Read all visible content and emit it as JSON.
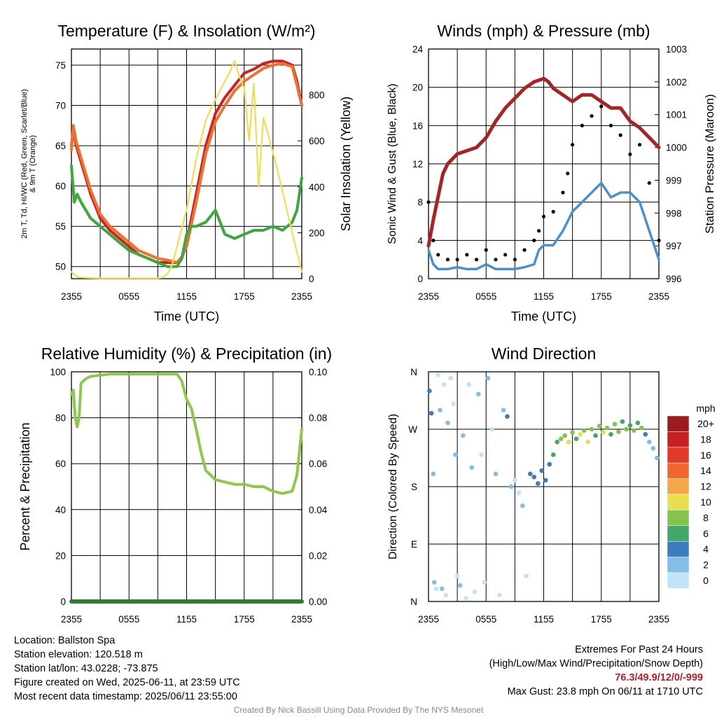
{
  "chart_data": [
    {
      "type": "line",
      "title": "Temperature (F) & Insolation (W/m²)",
      "xlabel": "Time (UTC)",
      "ylabel_left_lines": [
        "2m T, Td, HI/WC (Red, Green, Scarlet/Blue)",
        "& 9m T (Orange)"
      ],
      "ylabel_right": "Solar Insolation (Yellow)",
      "x_ticks": [
        "2355",
        "0555",
        "1155",
        "1755",
        "2355"
      ],
      "ylim_left": [
        48.5,
        77
      ],
      "y_ticks_left": [
        50,
        55,
        60,
        65,
        70,
        75
      ],
      "ylim_right": [
        0,
        1000
      ],
      "y_ticks_right": [
        0,
        200,
        400,
        600,
        800
      ],
      "grid": true,
      "series": [
        {
          "color": "#cc2222",
          "axis": "left",
          "x": [
            0,
            0.2,
            0.5,
            1,
            1.5,
            2,
            2.5,
            3,
            4,
            5,
            6,
            7,
            8,
            9,
            10,
            11,
            11.5,
            12,
            13,
            14,
            15,
            16,
            17,
            18,
            19,
            20,
            21,
            22,
            23,
            23.5,
            24
          ],
          "y": [
            65,
            67,
            65,
            63,
            61,
            59,
            57.5,
            56,
            54.5,
            53.5,
            52.5,
            51.5,
            51,
            50.5,
            50.5,
            50.5,
            51,
            53,
            59,
            65,
            69,
            71,
            72.5,
            74,
            74.5,
            75.2,
            75.5,
            75.5,
            75,
            73,
            70
          ]
        },
        {
          "color": "#f07030",
          "axis": "left",
          "x": [
            0,
            0.2,
            0.5,
            1,
            1.5,
            2,
            2.5,
            3,
            4,
            5,
            6,
            7,
            8,
            9,
            10,
            11,
            11.5,
            12,
            13,
            14,
            15,
            16,
            17,
            18,
            19,
            20,
            21,
            22,
            23,
            23.5,
            24
          ],
          "y": [
            64.5,
            67.5,
            65.5,
            63.5,
            61.5,
            59.5,
            58,
            56.5,
            55,
            54,
            53,
            52,
            51.5,
            51,
            50.8,
            50.5,
            51.2,
            52.5,
            58,
            64,
            68,
            70,
            71.8,
            73,
            73.8,
            74.6,
            75,
            75.2,
            74.8,
            72.5,
            70
          ]
        },
        {
          "color": "#3aa83a",
          "axis": "left",
          "x": [
            0,
            0.3,
            0.6,
            1,
            1.5,
            2,
            3,
            4,
            5,
            6,
            7,
            8,
            9,
            10,
            11,
            11.5,
            12,
            12.5,
            13,
            14,
            15,
            16,
            17,
            18,
            19,
            20,
            21,
            22,
            23,
            23.5,
            24
          ],
          "y": [
            62.5,
            58,
            59,
            58,
            57,
            56,
            55,
            54,
            53,
            52,
            51.5,
            51,
            50.5,
            50,
            50,
            51,
            54,
            55,
            55,
            55.5,
            57,
            54,
            53.5,
            54,
            54.5,
            54.5,
            55,
            54.5,
            55.5,
            57,
            61
          ]
        },
        {
          "color": "#f0de50",
          "axis": "right",
          "x": [
            0,
            0.5,
            1,
            2,
            3,
            4,
            5,
            6,
            7,
            8,
            9,
            9.5,
            10,
            10.5,
            11,
            12,
            13,
            14,
            15,
            16,
            16.5,
            17,
            17.5,
            18,
            18.5,
            19,
            19.5,
            20,
            21,
            22,
            23,
            24
          ],
          "y": [
            30,
            10,
            5,
            3,
            2,
            2,
            2,
            2,
            2,
            2,
            2,
            5,
            20,
            60,
            140,
            300,
            520,
            690,
            780,
            860,
            900,
            950,
            880,
            830,
            600,
            850,
            400,
            700,
            550,
            380,
            200,
            30
          ]
        }
      ]
    },
    {
      "type": "line",
      "title": "Winds (mph) & Pressure (mb)",
      "xlabel": "Time (UTC)",
      "ylabel_left": "Sonic Wind & Gust (Blue, Black)",
      "ylabel_right": "Station Pressure (Maroon)",
      "x_ticks": [
        "2355",
        "0555",
        "1155",
        "1755",
        "2355"
      ],
      "ylim_left": [
        0,
        24
      ],
      "y_ticks_left": [
        0,
        4,
        8,
        12,
        16,
        20,
        24
      ],
      "ylim_right": [
        996,
        1003
      ],
      "y_ticks_right": [
        996,
        997,
        998,
        999,
        1000,
        1001,
        1002,
        1003
      ],
      "grid": true,
      "series": [
        {
          "color": "#a82424",
          "axis": "right",
          "x": [
            0,
            0.5,
            1,
            1.5,
            2,
            3,
            4,
            5,
            6,
            7,
            8,
            9,
            10,
            11,
            12,
            12.5,
            13,
            14,
            15,
            16,
            17,
            18,
            19,
            20,
            21,
            22,
            23,
            24
          ],
          "y": [
            997,
            997.8,
            998.5,
            999.2,
            999.5,
            999.8,
            999.9,
            1000,
            1000.3,
            1000.8,
            1001.2,
            1001.5,
            1001.8,
            1002,
            1002.1,
            1002,
            1001.8,
            1001.6,
            1001.4,
            1001.6,
            1001.6,
            1001.4,
            1001.2,
            1001.2,
            1000.8,
            1000.6,
            1000.3,
            1000
          ]
        },
        {
          "color": "#4a90d0",
          "axis": "left",
          "x": [
            0,
            0.5,
            1,
            2,
            3,
            4,
            5,
            6,
            7,
            8,
            9,
            10,
            11,
            11.5,
            12,
            13,
            14,
            14.5,
            15,
            16,
            17,
            18,
            19,
            20,
            21,
            22,
            23,
            24
          ],
          "y": [
            3,
            1.5,
            1,
            1,
            1.2,
            1,
            1,
            1.5,
            1,
            1,
            1,
            1.2,
            1.5,
            3,
            3.5,
            3.5,
            5,
            6,
            7,
            8,
            9,
            10,
            8.5,
            9,
            9,
            8,
            5,
            2
          ]
        },
        {
          "color": "#000000",
          "axis": "left",
          "x": [
            0,
            0.5,
            1,
            2,
            3,
            4,
            5,
            6,
            7,
            8,
            9,
            10,
            11,
            11.5,
            12,
            13,
            14,
            14.5,
            15,
            16,
            17,
            18,
            19,
            20,
            21,
            22,
            23,
            24
          ],
          "y": [
            8,
            4,
            2.5,
            2,
            2,
            2.5,
            2,
            3,
            2,
            2.5,
            2,
            3,
            4,
            5,
            6.5,
            7,
            9,
            11,
            14,
            16,
            17,
            18,
            16,
            15,
            13,
            14,
            10,
            4
          ]
        }
      ]
    },
    {
      "type": "line",
      "title": "Relative Humidity (%) & Precipitation (in)",
      "ylabel_left": "Percent & Precipitation",
      "x_ticks": [
        "2355",
        "0555",
        "1155",
        "1755",
        "2355"
      ],
      "ylim_left": [
        0,
        100
      ],
      "y_ticks_left": [
        0,
        20,
        40,
        60,
        80,
        100
      ],
      "ylim_right": [
        0,
        0.1
      ],
      "y_ticks_right": [
        "0.00",
        "0.02",
        "0.04",
        "0.06",
        "0.08",
        "0.10"
      ],
      "grid": true,
      "series": [
        {
          "color": "#8cc84a",
          "axis": "left",
          "x": [
            0,
            0.2,
            0.4,
            0.6,
            0.8,
            1,
            1.5,
            2,
            3,
            4,
            5,
            6,
            7,
            8,
            9,
            10,
            11,
            11.5,
            12,
            12.5,
            13,
            13.5,
            14,
            14.5,
            15,
            16,
            17,
            18,
            19,
            20,
            21,
            22,
            23,
            23.5,
            24
          ],
          "y": [
            90,
            92,
            80,
            76,
            80,
            95,
            97,
            98,
            98.5,
            99,
            99,
            99,
            99,
            99,
            99,
            99,
            99,
            96,
            88,
            84,
            75,
            65,
            57,
            55,
            53,
            52,
            51,
            51,
            50,
            50,
            48,
            47,
            48,
            55,
            75
          ]
        },
        {
          "color": "#2e7d32",
          "axis": "left",
          "x": [
            0,
            24
          ],
          "y": [
            0,
            0
          ]
        }
      ]
    },
    {
      "type": "scatter",
      "title": "Wind Direction",
      "ylabel": "Direction (Colored By Speed)",
      "x_ticks": [
        "2355",
        "0555",
        "1155",
        "1755",
        "2355"
      ],
      "y_ticks": [
        "N",
        "E",
        "S",
        "W",
        "N"
      ],
      "ylim": [
        0,
        360
      ],
      "grid": true,
      "legend_title": "mph",
      "legend": [
        {
          "label": "20+",
          "color": "#9a1c1c"
        },
        {
          "label": "18",
          "color": "#c82020"
        },
        {
          "label": "16",
          "color": "#e03a28"
        },
        {
          "label": "14",
          "color": "#f06830"
        },
        {
          "label": "12",
          "color": "#f5a648"
        },
        {
          "label": "10",
          "color": "#e6e050"
        },
        {
          "label": "8",
          "color": "#84c44e"
        },
        {
          "label": "6",
          "color": "#3fa86a"
        },
        {
          "label": "4",
          "color": "#3a7cbc"
        },
        {
          "label": "2",
          "color": "#84bee6"
        },
        {
          "label": "0",
          "color": "#c0e4f8"
        }
      ],
      "points": [
        {
          "x": 0.1,
          "y": 330,
          "c": "#3a7cbc"
        },
        {
          "x": 0.3,
          "y": 295,
          "c": "#3a7cbc"
        },
        {
          "x": 0.5,
          "y": 200,
          "c": "#84bee6"
        },
        {
          "x": 0.6,
          "y": 30,
          "c": "#84bee6"
        },
        {
          "x": 0.8,
          "y": 20,
          "c": "#c0e4f8"
        },
        {
          "x": 1,
          "y": 355,
          "c": "#c0e4f8"
        },
        {
          "x": 1.2,
          "y": 300,
          "c": "#84bee6"
        },
        {
          "x": 1.4,
          "y": 20,
          "c": "#84bee6"
        },
        {
          "x": 1.6,
          "y": 340,
          "c": "#c0e4f8"
        },
        {
          "x": 1.8,
          "y": 10,
          "c": "#c0e4f8"
        },
        {
          "x": 2,
          "y": 280,
          "c": "#84bee6"
        },
        {
          "x": 2.3,
          "y": 350,
          "c": "#c0e4f8"
        },
        {
          "x": 2.6,
          "y": 310,
          "c": "#c0e4f8"
        },
        {
          "x": 2.8,
          "y": 230,
          "c": "#84bee6"
        },
        {
          "x": 3,
          "y": 40,
          "c": "#c0e4f8"
        },
        {
          "x": 3.3,
          "y": 25,
          "c": "#84bee6"
        },
        {
          "x": 3.6,
          "y": 260,
          "c": "#84bee6"
        },
        {
          "x": 3.9,
          "y": 5,
          "c": "#c0e4f8"
        },
        {
          "x": 4.2,
          "y": 340,
          "c": "#c0e4f8"
        },
        {
          "x": 4.5,
          "y": 210,
          "c": "#84bee6"
        },
        {
          "x": 4.8,
          "y": 15,
          "c": "#c0e4f8"
        },
        {
          "x": 5.2,
          "y": 325,
          "c": "#84bee6"
        },
        {
          "x": 5.5,
          "y": 230,
          "c": "#c0e4f8"
        },
        {
          "x": 5.8,
          "y": 30,
          "c": "#c0e4f8"
        },
        {
          "x": 6.2,
          "y": 350,
          "c": "#84bee6"
        },
        {
          "x": 6.6,
          "y": 270,
          "c": "#c0e4f8"
        },
        {
          "x": 7,
          "y": 200,
          "c": "#84bee6"
        },
        {
          "x": 7.4,
          "y": 10,
          "c": "#c0e4f8"
        },
        {
          "x": 7.8,
          "y": 300,
          "c": "#84bee6"
        },
        {
          "x": 8.2,
          "y": 290,
          "c": "#3a7cbc"
        },
        {
          "x": 8.6,
          "y": 180,
          "c": "#84bee6"
        },
        {
          "x": 9,
          "y": 190,
          "c": "#c0e4f8"
        },
        {
          "x": 9.4,
          "y": 170,
          "c": "#c0e4f8"
        },
        {
          "x": 9.8,
          "y": 150,
          "c": "#84bee6"
        },
        {
          "x": 10.2,
          "y": 40,
          "c": "#c0e4f8"
        },
        {
          "x": 10.6,
          "y": 200,
          "c": "#3a7cbc"
        },
        {
          "x": 11,
          "y": 195,
          "c": "#3a7cbc"
        },
        {
          "x": 11.4,
          "y": 185,
          "c": "#3a7cbc"
        },
        {
          "x": 11.8,
          "y": 205,
          "c": "#3a7cbc"
        },
        {
          "x": 12.2,
          "y": 190,
          "c": "#3a7cbc"
        },
        {
          "x": 12.6,
          "y": 215,
          "c": "#3a7cbc"
        },
        {
          "x": 13,
          "y": 230,
          "c": "#3fa86a"
        },
        {
          "x": 13.4,
          "y": 250,
          "c": "#3fa86a"
        },
        {
          "x": 13.8,
          "y": 255,
          "c": "#84c44e"
        },
        {
          "x": 14.2,
          "y": 260,
          "c": "#84c44e"
        },
        {
          "x": 14.6,
          "y": 250,
          "c": "#e6e050"
        },
        {
          "x": 15,
          "y": 265,
          "c": "#84c44e"
        },
        {
          "x": 15.4,
          "y": 255,
          "c": "#3fa86a"
        },
        {
          "x": 15.8,
          "y": 262,
          "c": "#e6e050"
        },
        {
          "x": 16.2,
          "y": 268,
          "c": "#84c44e"
        },
        {
          "x": 16.6,
          "y": 250,
          "c": "#e6e050"
        },
        {
          "x": 17,
          "y": 270,
          "c": "#84c44e"
        },
        {
          "x": 17.4,
          "y": 260,
          "c": "#3fa86a"
        },
        {
          "x": 17.8,
          "y": 275,
          "c": "#84c44e"
        },
        {
          "x": 18.2,
          "y": 265,
          "c": "#e6e050"
        },
        {
          "x": 18.6,
          "y": 272,
          "c": "#84c44e"
        },
        {
          "x": 19,
          "y": 262,
          "c": "#3fa86a"
        },
        {
          "x": 19.4,
          "y": 278,
          "c": "#84c44e"
        },
        {
          "x": 19.8,
          "y": 266,
          "c": "#84c44e"
        },
        {
          "x": 20.2,
          "y": 282,
          "c": "#3fa86a"
        },
        {
          "x": 20.6,
          "y": 270,
          "c": "#84c44e"
        },
        {
          "x": 21,
          "y": 276,
          "c": "#3fa86a"
        },
        {
          "x": 21.4,
          "y": 268,
          "c": "#84c44e"
        },
        {
          "x": 21.8,
          "y": 280,
          "c": "#3fa86a"
        },
        {
          "x": 22.2,
          "y": 272,
          "c": "#84c44e"
        },
        {
          "x": 22.6,
          "y": 262,
          "c": "#3a7cbc"
        },
        {
          "x": 23,
          "y": 250,
          "c": "#84bee6"
        },
        {
          "x": 23.4,
          "y": 240,
          "c": "#84bee6"
        },
        {
          "x": 23.8,
          "y": 225,
          "c": "#84bee6"
        }
      ]
    }
  ],
  "info": {
    "location": "Location: Ballston Spa",
    "elevation": "Station elevation: 120.518 m",
    "latlon": "Station lat/lon: 43.0228; -73.875",
    "created": "Figure created on Wed, 2025-06-11, at 23:59 UTC",
    "recent": "Most recent data timestamp: 2025/06/11 23:55:00"
  },
  "extremes": {
    "heading": "Extremes For Past 24 Hours",
    "subheading": "(High/Low/Max Wind/Precipitation/Snow Depth)",
    "values": "76.3/49.9/12/0/-999",
    "gust": "Max Gust: 23.8 mph On 06/11 at 1710 UTC"
  },
  "credit": "Created By Nick Bassill Using Data Provided By The NYS Mesonet"
}
